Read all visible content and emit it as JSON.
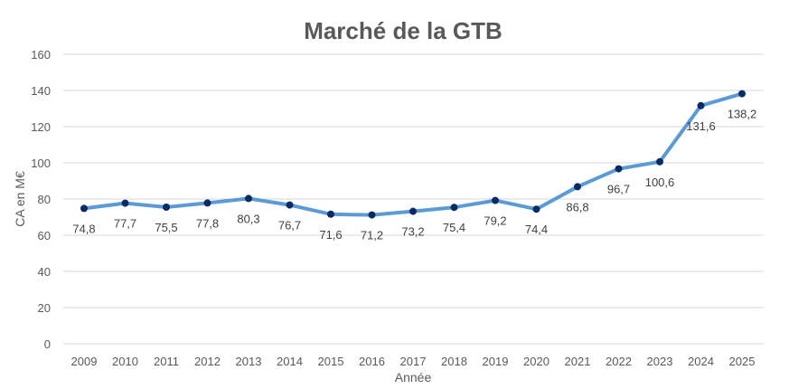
{
  "chart_data": {
    "type": "line",
    "title": "Marché de la GTB",
    "xlabel": "Année",
    "ylabel": "CA en M€",
    "ylim": [
      0,
      160
    ],
    "yticks": [
      0,
      20,
      40,
      60,
      80,
      100,
      120,
      140,
      160
    ],
    "grid": true,
    "categories": [
      "2009",
      "2010",
      "2011",
      "2012",
      "2013",
      "2014",
      "2015",
      "2016",
      "2017",
      "2018",
      "2019",
      "2020",
      "2021",
      "2022",
      "2023",
      "2024",
      "2025"
    ],
    "series": [
      {
        "name": "CA",
        "values": [
          74.8,
          77.7,
          75.5,
          77.8,
          80.3,
          76.7,
          71.6,
          71.2,
          73.2,
          75.4,
          79.2,
          74.4,
          86.8,
          96.7,
          100.6,
          131.6,
          138.2
        ],
        "labels": [
          "74,8",
          "77,7",
          "75,5",
          "77,8",
          "80,3",
          "76,7",
          "71,6",
          "71,2",
          "73,2",
          "75,4",
          "79,2",
          "74,4",
          "86,8",
          "96,7",
          "100,6",
          "131,6",
          "138,2"
        ],
        "color": "#5b9bd5",
        "marker_color": "#0a2a66"
      }
    ]
  }
}
